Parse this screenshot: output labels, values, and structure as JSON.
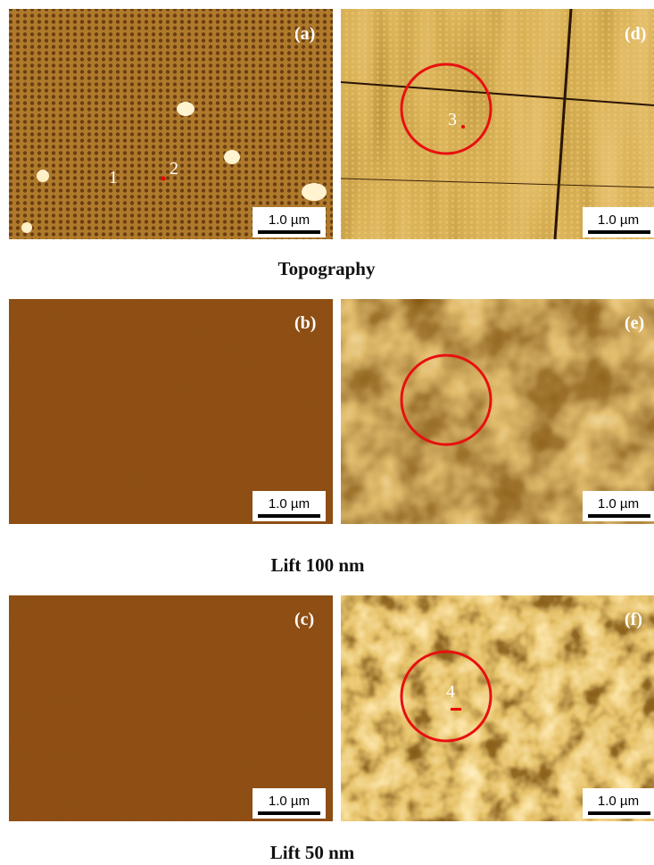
{
  "panels": [
    {
      "label": "(a)",
      "scale_bar": "1.0 µm",
      "markers": [
        "1",
        "2"
      ]
    },
    {
      "label": "(d)",
      "scale_bar": "1.0 µm",
      "markers": [
        "3"
      ]
    },
    {
      "label": "(b)",
      "scale_bar": "1.0 µm",
      "markers": []
    },
    {
      "label": "(e)",
      "scale_bar": "1.0 µm",
      "markers": []
    },
    {
      "label": "(c)",
      "scale_bar": "1.0 µm",
      "markers": []
    },
    {
      "label": "(f)",
      "scale_bar": "1.0 µm",
      "markers": [
        "4"
      ]
    }
  ],
  "captions": [
    "Topography",
    "Lift  100 nm",
    "Lift  50 nm"
  ]
}
